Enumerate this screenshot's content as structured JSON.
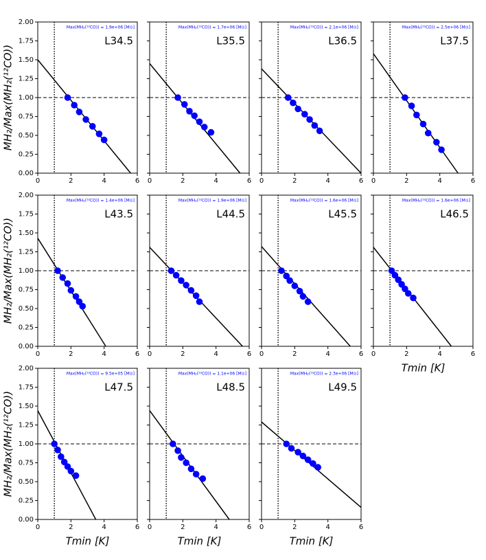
{
  "chart_data": [
    {
      "type": "scatter",
      "label": "L34.5",
      "annotation": "Max(MH₂(¹²CO)) = 1.9e+06 [M⊙]",
      "ylabel": "MH₂/Max(MH₂(¹²CO))",
      "x": [
        1.8,
        2.2,
        2.5,
        2.9,
        3.3,
        3.7,
        4.0
      ],
      "values": [
        1.0,
        0.9,
        0.81,
        0.71,
        0.62,
        0.52,
        0.44
      ],
      "color": "#0000ff",
      "fit": {
        "x": [
          0,
          5.6
        ],
        "values": [
          1.5,
          0
        ]
      },
      "vline": 1,
      "hline": 1,
      "xlim": [
        0,
        6
      ],
      "ylim": [
        0,
        2
      ],
      "xticks": [
        0,
        2,
        4,
        6
      ],
      "yticks": [
        {
          "value": 0,
          "label": "0.00"
        },
        {
          "value": 0.25,
          "label": "0.25"
        },
        {
          "value": 0.5,
          "label": "0.50"
        },
        {
          "value": 0.75,
          "label": "0.75"
        },
        {
          "value": 1,
          "label": "1.00"
        },
        {
          "value": 1.25,
          "label": "1.25"
        },
        {
          "value": 1.5,
          "label": "1.50"
        },
        {
          "value": 1.75,
          "label": "1.75"
        },
        {
          "value": 2,
          "label": "2.00"
        }
      ]
    },
    {
      "type": "scatter",
      "label": "L35.5",
      "annotation": "Max(MH₂(¹²CO)) = 1.7e+06 [M⊙]",
      "x": [
        1.7,
        2.1,
        2.4,
        2.7,
        3.0,
        3.3,
        3.7
      ],
      "values": [
        1.0,
        0.91,
        0.82,
        0.76,
        0.68,
        0.61,
        0.54
      ],
      "color": "#0000ff",
      "fit": {
        "x": [
          0,
          5.45
        ],
        "values": [
          1.45,
          0
        ]
      },
      "vline": 1,
      "hline": 1,
      "xlim": [
        0,
        6
      ],
      "ylim": [
        0,
        2
      ],
      "xticks": [
        0,
        2,
        4,
        6
      ],
      "yticks": [
        0,
        0.25,
        0.5,
        0.75,
        1,
        1.25,
        1.5,
        1.75,
        2
      ]
    },
    {
      "type": "scatter",
      "label": "L36.5",
      "annotation": "Max(MH₂(¹²CO)) = 2.1e+06 [M⊙]",
      "x": [
        1.6,
        1.9,
        2.2,
        2.6,
        2.9,
        3.2,
        3.5
      ],
      "values": [
        1.0,
        0.93,
        0.85,
        0.78,
        0.71,
        0.63,
        0.56
      ],
      "color": "#0000ff",
      "fit": {
        "x": [
          0,
          6
        ],
        "values": [
          1.38,
          0
        ]
      },
      "vline": 1,
      "hline": 1,
      "xlim": [
        0,
        6
      ],
      "ylim": [
        0,
        2
      ],
      "xticks": [
        0,
        2,
        4,
        6
      ],
      "yticks": [
        0,
        0.25,
        0.5,
        0.75,
        1,
        1.25,
        1.5,
        1.75,
        2
      ]
    },
    {
      "type": "scatter",
      "label": "L37.5",
      "annotation": "Max(MH₂(¹²CO)) = 2.5e+06 [M⊙]",
      "x": [
        1.9,
        2.3,
        2.6,
        3.0,
        3.3,
        3.8,
        4.1
      ],
      "values": [
        1.0,
        0.89,
        0.77,
        0.65,
        0.53,
        0.41,
        0.31
      ],
      "color": "#0000ff",
      "fit": {
        "x": [
          0,
          5.1
        ],
        "values": [
          1.58,
          0
        ]
      },
      "vline": 1,
      "hline": 1,
      "xlim": [
        0,
        6
      ],
      "ylim": [
        0,
        2
      ],
      "xticks": [
        0,
        2,
        4,
        6
      ],
      "yticks": [
        0,
        0.25,
        0.5,
        0.75,
        1,
        1.25,
        1.5,
        1.75,
        2
      ]
    },
    {
      "type": "scatter",
      "label": "L43.5",
      "annotation": "Max(MH₂(¹²CO)) = 1.4e+06 [M⊙]",
      "ylabel": "MH₂/Max(MH₂(¹²CO))",
      "x": [
        1.2,
        1.5,
        1.8,
        2.0,
        2.3,
        2.5,
        2.7
      ],
      "values": [
        1.0,
        0.91,
        0.83,
        0.74,
        0.66,
        0.59,
        0.53
      ],
      "color": "#0000ff",
      "fit": {
        "x": [
          0,
          4.1
        ],
        "values": [
          1.43,
          0
        ]
      },
      "vline": 1,
      "hline": 1,
      "xlim": [
        0,
        6
      ],
      "ylim": [
        0,
        2
      ],
      "xticks": [
        0,
        2,
        4,
        6
      ],
      "yticks": [
        {
          "value": 0,
          "label": "0.00"
        },
        {
          "value": 0.25,
          "label": "0.25"
        },
        {
          "value": 0.5,
          "label": "0.50"
        },
        {
          "value": 0.75,
          "label": "0.75"
        },
        {
          "value": 1,
          "label": "1.00"
        },
        {
          "value": 1.25,
          "label": "1.25"
        },
        {
          "value": 1.5,
          "label": "1.50"
        },
        {
          "value": 1.75,
          "label": "1.75"
        },
        {
          "value": 2,
          "label": "2.00"
        }
      ]
    },
    {
      "type": "scatter",
      "label": "L44.5",
      "annotation": "Max(MH₂(¹²CO)) = 1.9e+06 [M⊙]",
      "x": [
        1.3,
        1.6,
        1.9,
        2.2,
        2.5,
        2.8,
        3.0
      ],
      "values": [
        1.0,
        0.94,
        0.87,
        0.81,
        0.74,
        0.67,
        0.59
      ],
      "color": "#0000ff",
      "fit": {
        "x": [
          0,
          5.6
        ],
        "values": [
          1.31,
          0
        ]
      },
      "vline": 1,
      "hline": 1,
      "xlim": [
        0,
        6
      ],
      "ylim": [
        0,
        2
      ],
      "xticks": [
        0,
        2,
        4,
        6
      ],
      "yticks": [
        0,
        0.25,
        0.5,
        0.75,
        1,
        1.25,
        1.5,
        1.75,
        2
      ]
    },
    {
      "type": "scatter",
      "label": "L45.5",
      "annotation": "Max(MH₂(¹²CO)) = 1.6e+06 [M⊙]",
      "x": [
        1.2,
        1.5,
        1.7,
        2.0,
        2.3,
        2.5,
        2.8
      ],
      "values": [
        1.0,
        0.93,
        0.87,
        0.8,
        0.73,
        0.66,
        0.59
      ],
      "color": "#0000ff",
      "fit": {
        "x": [
          0,
          5.35
        ],
        "values": [
          1.32,
          0
        ]
      },
      "vline": 1,
      "hline": 1,
      "xlim": [
        0,
        6
      ],
      "ylim": [
        0,
        2
      ],
      "xticks": [
        0,
        2,
        4,
        6
      ],
      "yticks": [
        0,
        0.25,
        0.5,
        0.75,
        1,
        1.25,
        1.5,
        1.75,
        2
      ]
    },
    {
      "type": "scatter",
      "label": "L46.5",
      "annotation": "Max(MH₂(¹²CO)) = 1.6e+06 [M⊙]",
      "xlabel": "Tmin [K]",
      "x": [
        1.1,
        1.3,
        1.5,
        1.7,
        1.9,
        2.1,
        2.4
      ],
      "values": [
        1.0,
        0.94,
        0.88,
        0.82,
        0.76,
        0.7,
        0.64
      ],
      "color": "#0000ff",
      "fit": {
        "x": [
          0,
          4.7
        ],
        "values": [
          1.31,
          0
        ]
      },
      "vline": 1,
      "hline": 1,
      "xlim": [
        0,
        6
      ],
      "ylim": [
        0,
        2
      ],
      "xticks": [
        0,
        2,
        4,
        6
      ],
      "yticks": [
        0,
        0.25,
        0.5,
        0.75,
        1,
        1.25,
        1.5,
        1.75,
        2
      ]
    },
    {
      "type": "scatter",
      "label": "L47.5",
      "annotation": "Max(MH₂(¹²CO)) = 9.5e+05 [M⊙]",
      "ylabel": "MH₂/Max(MH₂(¹²CO))",
      "xlabel": "Tmin [K]",
      "x": [
        1.0,
        1.2,
        1.4,
        1.6,
        1.8,
        2.0,
        2.3
      ],
      "values": [
        1.0,
        0.92,
        0.83,
        0.76,
        0.7,
        0.64,
        0.58
      ],
      "color": "#0000ff",
      "fit": {
        "x": [
          0,
          3.5
        ],
        "values": [
          1.44,
          0
        ]
      },
      "vline": 1,
      "hline": 1,
      "xlim": [
        0,
        6
      ],
      "ylim": [
        0,
        2
      ],
      "xticks": [
        0,
        2,
        4,
        6
      ],
      "yticks": [
        {
          "value": 0,
          "label": "0.00"
        },
        {
          "value": 0.25,
          "label": "0.25"
        },
        {
          "value": 0.5,
          "label": "0.50"
        },
        {
          "value": 0.75,
          "label": "0.75"
        },
        {
          "value": 1,
          "label": "1.00"
        },
        {
          "value": 1.25,
          "label": "1.25"
        },
        {
          "value": 1.5,
          "label": "1.50"
        },
        {
          "value": 1.75,
          "label": "1.75"
        },
        {
          "value": 2,
          "label": "2.00"
        }
      ]
    },
    {
      "type": "scatter",
      "label": "L48.5",
      "annotation": "Max(MH₂(¹²CO)) = 1.1e+06 [M⊙]",
      "xlabel": "Tmin [K]",
      "x": [
        1.4,
        1.7,
        1.9,
        2.2,
        2.5,
        2.8,
        3.2
      ],
      "values": [
        1.0,
        0.91,
        0.82,
        0.75,
        0.67,
        0.6,
        0.54
      ],
      "color": "#0000ff",
      "fit": {
        "x": [
          0,
          4.8
        ],
        "values": [
          1.44,
          0
        ]
      },
      "vline": 1,
      "hline": 1,
      "xlim": [
        0,
        6
      ],
      "ylim": [
        0,
        2
      ],
      "xticks": [
        0,
        2,
        4,
        6
      ],
      "yticks": [
        0,
        0.25,
        0.5,
        0.75,
        1,
        1.25,
        1.5,
        1.75,
        2
      ]
    },
    {
      "type": "scatter",
      "label": "L49.5",
      "annotation": "Max(MH₂(¹²CO)) = 2.3e+06 [M⊙]",
      "xlabel": "Tmin [K]",
      "x": [
        1.5,
        1.8,
        2.2,
        2.5,
        2.8,
        3.1,
        3.4
      ],
      "values": [
        1.0,
        0.94,
        0.89,
        0.84,
        0.79,
        0.74,
        0.69
      ],
      "color": "#0000ff",
      "fit": {
        "x": [
          0,
          6
        ],
        "values": [
          1.29,
          0.16
        ]
      },
      "vline": 1,
      "hline": 1,
      "xlim": [
        0,
        6
      ],
      "ylim": [
        0,
        2
      ],
      "xticks": [
        0,
        2,
        4,
        6
      ],
      "yticks": [
        0,
        0.25,
        0.5,
        0.75,
        1,
        1.25,
        1.5,
        1.75,
        2
      ]
    }
  ]
}
